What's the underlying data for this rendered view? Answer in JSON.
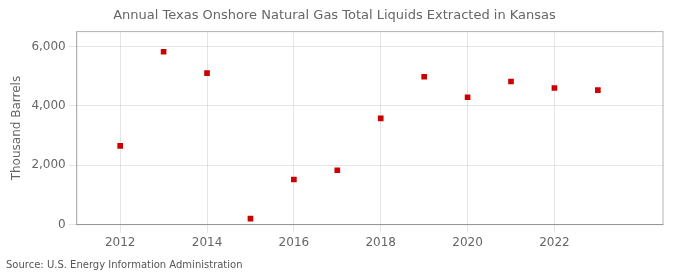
{
  "chart_data": {
    "type": "scatter",
    "title": "Annual Texas Onshore Natural Gas Total Liquids Extracted in Kansas",
    "ylabel": "Thousand Barrels",
    "source": "Source: U.S. Energy Information Administration",
    "x": [
      2012,
      2013,
      2014,
      2015,
      2016,
      2017,
      2018,
      2019,
      2020,
      2021,
      2022,
      2023
    ],
    "values": [
      2650,
      5820,
      5100,
      200,
      1520,
      1830,
      3580,
      4980,
      4290,
      4820,
      4600,
      4530
    ],
    "color": "#cc0000",
    "marker": "square",
    "xlim": [
      2011.0,
      2024.5
    ],
    "xticks": [
      2012,
      2014,
      2016,
      2018,
      2020,
      2022
    ],
    "ylim": [
      0,
      6500
    ],
    "yticks": [
      0,
      {
        "value": 2000,
        "label": "2,000"
      },
      {
        "value": 4000,
        "label": "4,000"
      },
      {
        "value": 6000,
        "label": "6,000"
      }
    ],
    "grid": true
  }
}
